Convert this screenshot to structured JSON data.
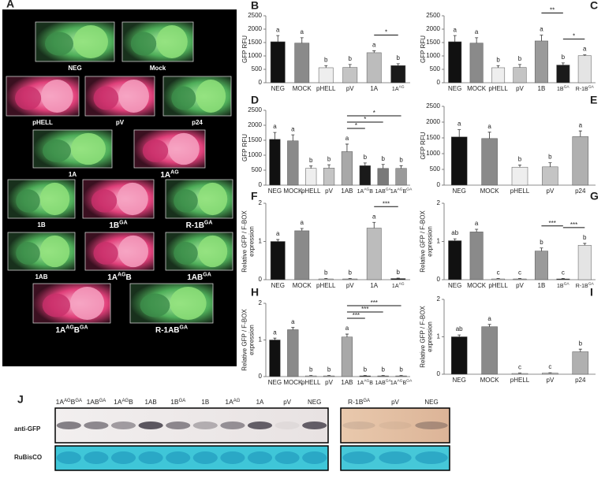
{
  "panel_a": {
    "letter": "A",
    "tiles": [
      {
        "label": "NEG",
        "tone": "green"
      },
      {
        "label": "Mock",
        "tone": "green"
      },
      {
        "label": "pHELL",
        "tone": "pink"
      },
      {
        "label": "pV",
        "tone": "pink"
      },
      {
        "label": "p24",
        "tone": "green"
      },
      {
        "label": "1A",
        "tone": "green"
      },
      {
        "label": {
          "base": "1A",
          "sup": "AG"
        },
        "tone": "pink"
      },
      {
        "label": "1B",
        "tone": "green"
      },
      {
        "label": {
          "base": "1B",
          "sup": "GA"
        },
        "tone": "pink"
      },
      {
        "label": {
          "base": "R-1B",
          "sup": "GA"
        },
        "tone": "green"
      },
      {
        "label": "1AB",
        "tone": "green"
      },
      {
        "label": {
          "base": "1A",
          "sup": "AG",
          "tail": "B"
        },
        "tone": "pink"
      },
      {
        "label": {
          "base": "1AB",
          "sup": "GA"
        },
        "tone": "green"
      },
      {
        "label": {
          "base": "1A",
          "sup": "AG",
          "tail": "B",
          "sup2": "GA"
        },
        "tone": "pink"
      },
      {
        "label": {
          "base": "R-1AB",
          "sup": "GA"
        },
        "tone": "green"
      }
    ]
  },
  "chart_data": [
    {
      "type": "bar",
      "panel": "B",
      "y_label": [
        "GFP RFU"
      ],
      "ylim": [
        0,
        2500
      ],
      "yticks": [
        0,
        500,
        1000,
        1500,
        2000,
        2500
      ],
      "categories": [
        "NEG",
        "MOCK",
        "pHELL",
        "pV",
        "1A",
        {
          "base": "1A",
          "sup": "AG"
        }
      ],
      "values": [
        1530,
        1480,
        560,
        570,
        1120,
        640
      ],
      "errors": [
        230,
        200,
        80,
        110,
        70,
        70
      ],
      "colors": [
        "#111111",
        "#8a8a8a",
        "#eeeeee",
        "#c4c4c4",
        "#bcbcbc",
        "#1a1a1a"
      ],
      "letters": [
        "a",
        "a",
        "b",
        "b",
        "a",
        "b"
      ],
      "significance": [
        {
          "from": 4,
          "to": 5,
          "label": "*"
        }
      ]
    },
    {
      "type": "bar",
      "panel": "C",
      "y_label": [
        "GFP RFU"
      ],
      "ylim": [
        0,
        2500
      ],
      "yticks": [
        0,
        500,
        1000,
        1500,
        2000,
        2500
      ],
      "categories": [
        "NEG",
        "MOCK",
        "pHELL",
        "pV",
        "1B",
        {
          "base": "1B",
          "sup": "GA"
        },
        {
          "base": "R-1B",
          "sup": "GA"
        }
      ],
      "values": [
        1530,
        1480,
        560,
        570,
        1560,
        660,
        1010
      ],
      "errors": [
        230,
        200,
        80,
        110,
        220,
        80,
        30
      ],
      "colors": [
        "#111111",
        "#8a8a8a",
        "#eeeeee",
        "#c4c4c4",
        "#9a9a9a",
        "#1a1a1a",
        "#e4e4e4"
      ],
      "letters": [
        "a",
        "a",
        "b",
        "b",
        "a",
        "b",
        "a"
      ],
      "significance": [
        {
          "from": 4,
          "to": 5,
          "label": "**"
        },
        {
          "from": 5,
          "to": 6,
          "label": "*"
        }
      ]
    },
    {
      "type": "bar",
      "panel": "D",
      "y_label": [
        "GFP RFU"
      ],
      "ylim": [
        0,
        2500
      ],
      "yticks": [
        0,
        500,
        1000,
        1500,
        2000,
        2500
      ],
      "categories": [
        "NEG",
        "MOCK",
        "pHELL",
        "pV",
        "1AB",
        {
          "base": "1A",
          "sup": "AG",
          "tail": "B"
        },
        {
          "base": "1AB",
          "sup": "GA"
        },
        {
          "base": "1A",
          "sup": "AG",
          "tail": "B",
          "sup2": "GA"
        }
      ],
      "values": [
        1530,
        1480,
        560,
        570,
        1120,
        650,
        560,
        560
      ],
      "errors": [
        230,
        200,
        80,
        110,
        250,
        90,
        130,
        90
      ],
      "colors": [
        "#111111",
        "#8a8a8a",
        "#eeeeee",
        "#c4c4c4",
        "#a8a8a8",
        "#1a1a1a",
        "#7a7a7a",
        "#9a9a9a"
      ],
      "letters": [
        "a",
        "a",
        "b",
        "b",
        "a",
        "b",
        "b",
        "b"
      ],
      "significance": [
        {
          "from": 4,
          "to": 7,
          "label": "*"
        },
        {
          "from": 4,
          "to": 6,
          "label": "*"
        },
        {
          "from": 4,
          "to": 5,
          "label": "*"
        }
      ]
    },
    {
      "type": "bar",
      "panel": "E",
      "y_label": [
        "GFP RFU"
      ],
      "ylim": [
        0,
        2500
      ],
      "yticks": [
        0,
        500,
        1000,
        1500,
        2000,
        2500
      ],
      "categories": [
        "NEG",
        "MOCK",
        "pHELL",
        "pV",
        "p24"
      ],
      "values": [
        1530,
        1480,
        570,
        580,
        1540
      ],
      "errors": [
        230,
        200,
        70,
        130,
        180
      ],
      "colors": [
        "#111111",
        "#8a8a8a",
        "#eeeeee",
        "#c4c4c4",
        "#b0b0b0"
      ],
      "letters": [
        "a",
        "a",
        "b",
        "b",
        "a"
      ],
      "significance": []
    },
    {
      "type": "bar",
      "panel": "F",
      "y_label": [
        "Relative GFP / F-BOX",
        "expression"
      ],
      "ylim": [
        0,
        2
      ],
      "yticks": [
        0,
        1,
        2
      ],
      "categories": [
        "NEG",
        "MOCK",
        "pHELL",
        "pV",
        "1A",
        {
          "base": "1A",
          "sup": "AG"
        }
      ],
      "values": [
        1.0,
        1.28,
        0.02,
        0.02,
        1.35,
        0.03
      ],
      "errors": [
        0.05,
        0.06,
        0.01,
        0.01,
        0.15,
        0.01
      ],
      "colors": [
        "#111111",
        "#8a8a8a",
        "#eeeeee",
        "#c4c4c4",
        "#bcbcbc",
        "#1a1a1a"
      ],
      "letters": [
        "a",
        "a",
        "b",
        "b",
        "a",
        "b"
      ],
      "significance": [
        {
          "from": 4,
          "to": 5,
          "label": "***"
        }
      ]
    },
    {
      "type": "bar",
      "panel": "G",
      "y_label": [
        "Relative GFP / F-BOX",
        "expression"
      ],
      "ylim": [
        0,
        2
      ],
      "yticks": [
        0,
        1,
        2
      ],
      "categories": [
        "NEG",
        "MOCK",
        "pHELL",
        "pV",
        "1B",
        {
          "base": "1B",
          "sup": "GA"
        },
        {
          "base": "R-1B",
          "sup": "GA"
        }
      ],
      "values": [
        1.02,
        1.25,
        0.02,
        0.02,
        0.75,
        0.02,
        0.9
      ],
      "errors": [
        0.05,
        0.07,
        0.01,
        0.01,
        0.08,
        0.01,
        0.05
      ],
      "colors": [
        "#111111",
        "#8a8a8a",
        "#eeeeee",
        "#c4c4c4",
        "#9a9a9a",
        "#1a1a1a",
        "#e4e4e4"
      ],
      "letters": [
        "ab",
        "a",
        "c",
        "c",
        "b",
        "c",
        "b"
      ],
      "significance": [
        {
          "from": 4,
          "to": 5,
          "label": "***"
        },
        {
          "from": 5,
          "to": 6,
          "label": "***"
        }
      ]
    },
    {
      "type": "bar",
      "panel": "H",
      "y_label": [
        "Relative GFP / F-BOX",
        "expression"
      ],
      "ylim": [
        0,
        2
      ],
      "yticks": [
        0,
        1,
        2
      ],
      "categories": [
        "NEG",
        "MOCK",
        "pHELL",
        "pV",
        "1AB",
        {
          "base": "1A",
          "sup": "AG",
          "tail": "B"
        },
        {
          "base": "1AB",
          "sup": "GA"
        },
        {
          "base": "1A",
          "sup": "AG",
          "tail": "B",
          "sup2": "GA"
        }
      ],
      "values": [
        1.0,
        1.28,
        0.02,
        0.02,
        1.08,
        0.02,
        0.02,
        0.02
      ],
      "errors": [
        0.05,
        0.06,
        0.01,
        0.01,
        0.08,
        0.01,
        0.01,
        0.01
      ],
      "colors": [
        "#111111",
        "#8a8a8a",
        "#eeeeee",
        "#c4c4c4",
        "#a8a8a8",
        "#1a1a1a",
        "#7a7a7a",
        "#9a9a9a"
      ],
      "letters": [
        "a",
        "a",
        "b",
        "b",
        "a",
        "b",
        "b",
        "b"
      ],
      "significance": [
        {
          "from": 4,
          "to": 7,
          "label": "***"
        },
        {
          "from": 4,
          "to": 6,
          "label": "***"
        },
        {
          "from": 4,
          "to": 5,
          "label": "***"
        }
      ]
    },
    {
      "type": "bar",
      "panel": "I",
      "y_label": [
        "Relative GFP / F-BOX",
        "expression"
      ],
      "ylim": [
        0,
        2
      ],
      "yticks": [
        0,
        1,
        2
      ],
      "categories": [
        "NEG",
        "MOCK",
        "pHELL",
        "pV",
        "p24"
      ],
      "values": [
        1.0,
        1.27,
        0.02,
        0.03,
        0.6
      ],
      "errors": [
        0.05,
        0.06,
        0.01,
        0.01,
        0.07
      ],
      "colors": [
        "#111111",
        "#8a8a8a",
        "#eeeeee",
        "#c4c4c4",
        "#b0b0b0"
      ],
      "letters": [
        "ab",
        "a",
        "c",
        "c",
        "b"
      ],
      "significance": []
    }
  ],
  "panel_j": {
    "letter": "J",
    "rows": [
      "anti-GFP",
      "RuBisCO"
    ],
    "left_lanes": [
      {
        "base": "1A",
        "sup": "AG",
        "tail": "B",
        "sup2": "GA"
      },
      {
        "base": "1AB",
        "sup": "GA"
      },
      {
        "base": "1A",
        "sup": "AG",
        "tail": "B"
      },
      "1AB",
      {
        "base": "1B",
        "sup": "GA"
      },
      "1B",
      {
        "base": "1A",
        "sup": "AG"
      },
      "1A",
      "pV",
      "NEG"
    ],
    "right_lanes": [
      {
        "base": "R-1B",
        "sup": "GA"
      },
      "pV",
      "NEG"
    ]
  }
}
